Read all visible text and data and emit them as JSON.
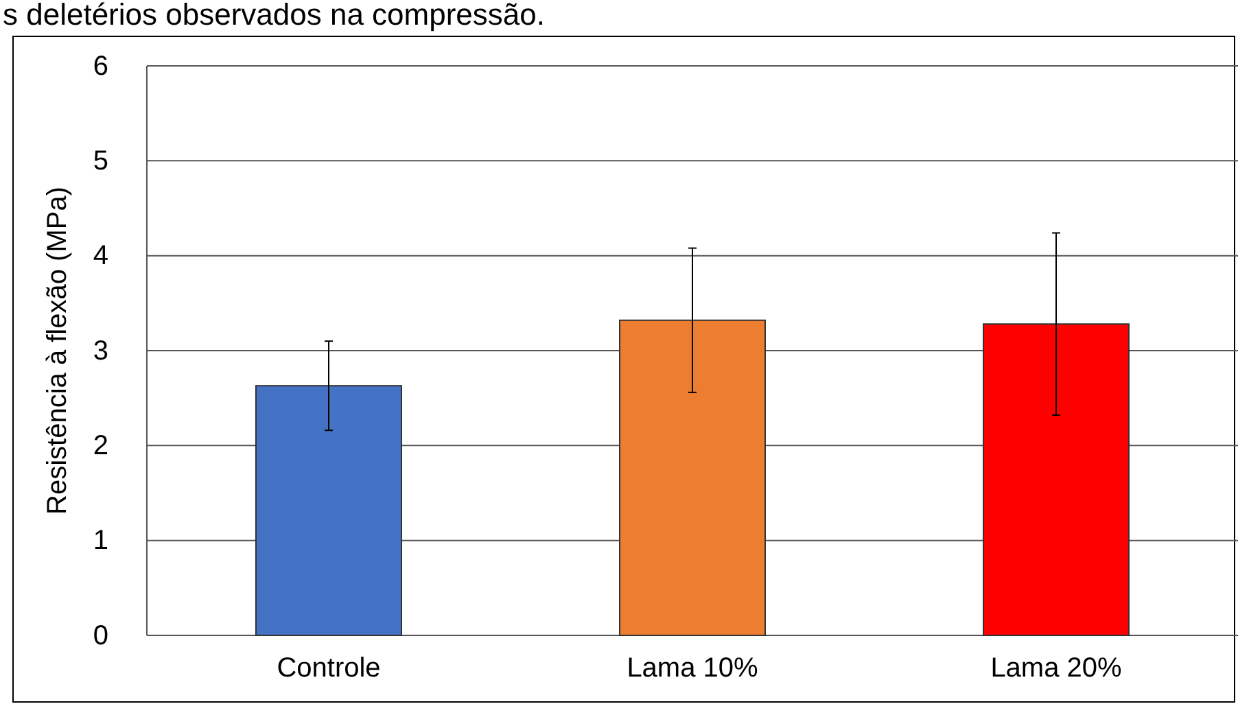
{
  "chart_data": {
    "type": "bar",
    "ylabel": "Resistência à flexão (MPa)",
    "annotations": [
      "s deletérios observados na compressão."
    ],
    "categories": [
      "Controle",
      "Lama 10%",
      "Lama 20%"
    ],
    "values": [
      2.63,
      3.32,
      3.28
    ],
    "colors": [
      "#4472c4",
      "#ed7d31",
      "#ff0000"
    ],
    "errors": [
      0.47,
      0.76,
      0.96
    ],
    "ylim": [
      0,
      6
    ],
    "yticks": [
      0,
      1,
      2,
      3,
      4,
      5,
      6
    ],
    "grid": "y"
  }
}
